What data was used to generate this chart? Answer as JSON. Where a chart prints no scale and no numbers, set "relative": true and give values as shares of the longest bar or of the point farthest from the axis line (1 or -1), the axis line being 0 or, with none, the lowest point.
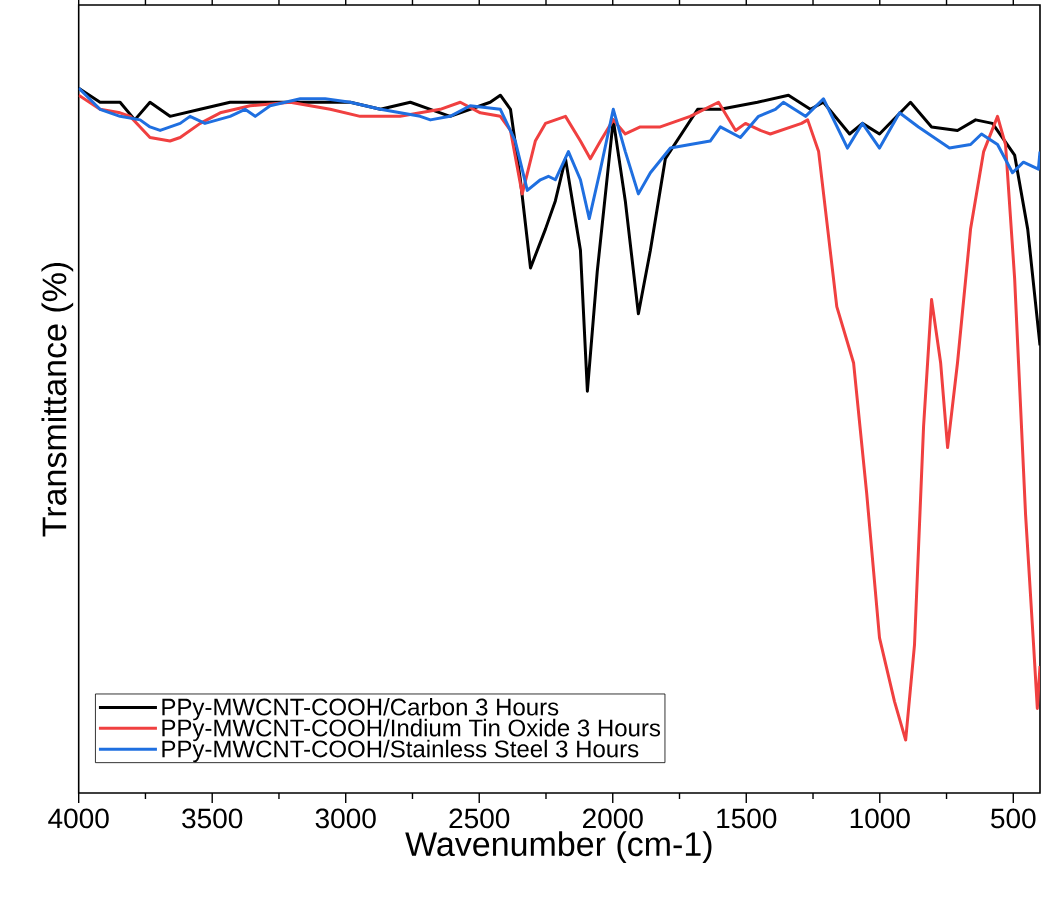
{
  "chart_data": {
    "type": "line",
    "xlabel": "Wavenumber (cm-1)",
    "ylabel": "Transmittance (%)",
    "relative": true,
    "xlim": [
      4000,
      400
    ],
    "xticks": [
      4000,
      {
        "value": 3750,
        "label": null
      },
      3500,
      {
        "value": 3250,
        "label": null
      },
      3000,
      {
        "value": 2750,
        "label": null
      },
      2500,
      {
        "value": 2250,
        "label": null
      },
      2000,
      {
        "value": 1750,
        "label": null
      },
      1500,
      {
        "value": 1250,
        "label": null
      },
      1000,
      {
        "value": 750,
        "label": null
      },
      500
    ],
    "legend": "bottom left",
    "grid": false,
    "series": [
      {
        "name": "PPy-MWCNT-COOH/Carbon 3 Hours",
        "color": "#000000",
        "x": [
          4000,
          3920,
          3845,
          3790,
          3733,
          3658,
          3545,
          3433,
          3283,
          3170,
          2983,
          2870,
          2758,
          2683,
          2609,
          2534,
          2459,
          2421,
          2383,
          2346,
          2308,
          2252,
          2215,
          2177,
          2121,
          2095,
          2058,
          1998,
          1953,
          1904,
          1859,
          1803,
          1682,
          1597,
          1458,
          1342,
          1260,
          1211,
          1113,
          1065,
          1001,
          885,
          806,
          709,
          641,
          578,
          495,
          446,
          400
        ],
        "values": [
          1.0,
          0.98,
          0.98,
          0.955,
          0.98,
          0.96,
          0.97,
          0.98,
          0.98,
          0.98,
          0.98,
          0.97,
          0.98,
          0.97,
          0.96,
          0.97,
          0.98,
          0.99,
          0.97,
          0.87,
          0.745,
          0.8,
          0.84,
          0.9,
          0.77,
          0.57,
          0.74,
          0.955,
          0.84,
          0.68,
          0.77,
          0.9,
          0.97,
          0.97,
          0.98,
          0.99,
          0.97,
          0.98,
          0.935,
          0.95,
          0.935,
          0.98,
          0.945,
          0.94,
          0.955,
          0.95,
          0.905,
          0.8,
          0.635
        ]
      },
      {
        "name": "PPy-MWCNT-COOH/Indium Tin Oxide 3 Hours",
        "color": "#f04040",
        "x": [
          4000,
          3920,
          3845,
          3807,
          3770,
          3733,
          3658,
          3620,
          3545,
          3470,
          3358,
          3208,
          3058,
          2946,
          2796,
          2646,
          2571,
          2496,
          2421,
          2383,
          2339,
          2290,
          2252,
          2177,
          2121,
          2084,
          2046,
          1998,
          1953,
          1897,
          1822,
          1710,
          1604,
          1540,
          1503,
          1447,
          1410,
          1293,
          1270,
          1229,
          1195,
          1161,
          1098,
          1049,
          1001,
          945,
          903,
          870,
          836,
          806,
          772,
          746,
          709,
          660,
          611,
          559,
          529,
          495,
          454,
          424,
          410,
          400
        ],
        "values": [
          0.99,
          0.97,
          0.965,
          0.96,
          0.945,
          0.93,
          0.925,
          0.93,
          0.95,
          0.965,
          0.975,
          0.98,
          0.97,
          0.96,
          0.96,
          0.97,
          0.98,
          0.965,
          0.96,
          0.94,
          0.85,
          0.925,
          0.95,
          0.96,
          0.925,
          0.9,
          0.925,
          0.955,
          0.935,
          0.945,
          0.945,
          0.96,
          0.98,
          0.94,
          0.95,
          0.94,
          0.935,
          0.95,
          0.955,
          0.91,
          0.8,
          0.69,
          0.61,
          0.425,
          0.22,
          0.13,
          0.075,
          0.21,
          0.52,
          0.7,
          0.61,
          0.49,
          0.61,
          0.8,
          0.91,
          0.96,
          0.92,
          0.73,
          0.395,
          0.21,
          0.12,
          0.18
        ]
      },
      {
        "name": "PPy-MWCNT-COOH/Stainless Steel 3 Hours",
        "color": "#1f6fe0",
        "x": [
          4000,
          3920,
          3845,
          3770,
          3733,
          3695,
          3620,
          3583,
          3527,
          3433,
          3377,
          3339,
          3283,
          3170,
          3077,
          2983,
          2870,
          2721,
          2683,
          2609,
          2534,
          2421,
          2365,
          2320,
          2271,
          2241,
          2215,
          2166,
          2121,
          2088,
          2046,
          1998,
          1953,
          1904,
          1859,
          1784,
          1710,
          1635,
          1597,
          1522,
          1454,
          1391,
          1361,
          1278,
          1211,
          1121,
          1065,
          1001,
          926,
          855,
          739,
          660,
          619,
          559,
          503,
          462,
          406,
          400
        ],
        "values": [
          1.0,
          0.97,
          0.96,
          0.955,
          0.945,
          0.94,
          0.95,
          0.96,
          0.95,
          0.96,
          0.97,
          0.96,
          0.975,
          0.985,
          0.985,
          0.98,
          0.97,
          0.96,
          0.955,
          0.96,
          0.975,
          0.97,
          0.925,
          0.855,
          0.87,
          0.875,
          0.87,
          0.91,
          0.87,
          0.815,
          0.885,
          0.97,
          0.91,
          0.85,
          0.88,
          0.915,
          0.92,
          0.925,
          0.945,
          0.93,
          0.96,
          0.97,
          0.98,
          0.96,
          0.985,
          0.915,
          0.95,
          0.915,
          0.965,
          0.945,
          0.915,
          0.92,
          0.935,
          0.92,
          0.88,
          0.895,
          0.885,
          0.91
        ]
      }
    ]
  }
}
